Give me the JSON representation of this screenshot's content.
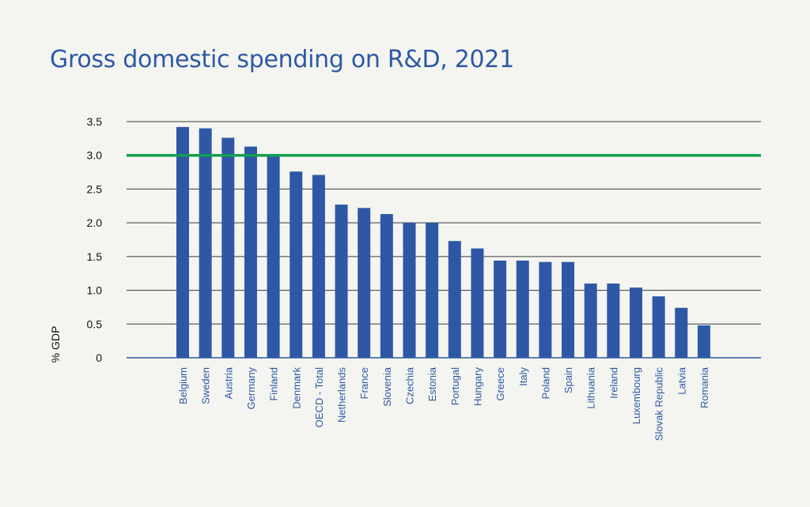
{
  "chart_data": {
    "type": "bar",
    "title": "Gross domestic spending on R&D, 2021",
    "xlabel": "",
    "ylabel": "% GDP",
    "ylim": [
      0,
      3.5
    ],
    "yticks": [
      "0",
      "0.5",
      "1.0",
      "1.5",
      "2.0",
      "2.5",
      "3.0",
      "3.5"
    ],
    "grid": true,
    "reference_line": {
      "value": 3.0,
      "color": "#12a04f"
    },
    "bar_color": "#2e58a6",
    "categories": [
      "Belgium",
      "Sweden",
      "Austria",
      "Germany",
      "Finland",
      "Denmark",
      "OECD - Total",
      "Netherlands",
      "France",
      "Slovenia",
      "Czechia",
      "Estonia",
      "Portugal",
      "Hungary",
      "Greece",
      "Italy",
      "Poland",
      "Spain",
      "Lithuania",
      "Ireland",
      "Luxembourg",
      "Slovak Republic",
      "Latvia",
      "Romania"
    ],
    "values": [
      3.42,
      3.4,
      3.26,
      3.13,
      2.99,
      2.76,
      2.71,
      2.27,
      2.22,
      2.13,
      2.0,
      2.0,
      1.73,
      1.62,
      1.44,
      1.44,
      1.42,
      1.42,
      1.1,
      1.1,
      1.04,
      0.91,
      0.74,
      0.48
    ]
  }
}
